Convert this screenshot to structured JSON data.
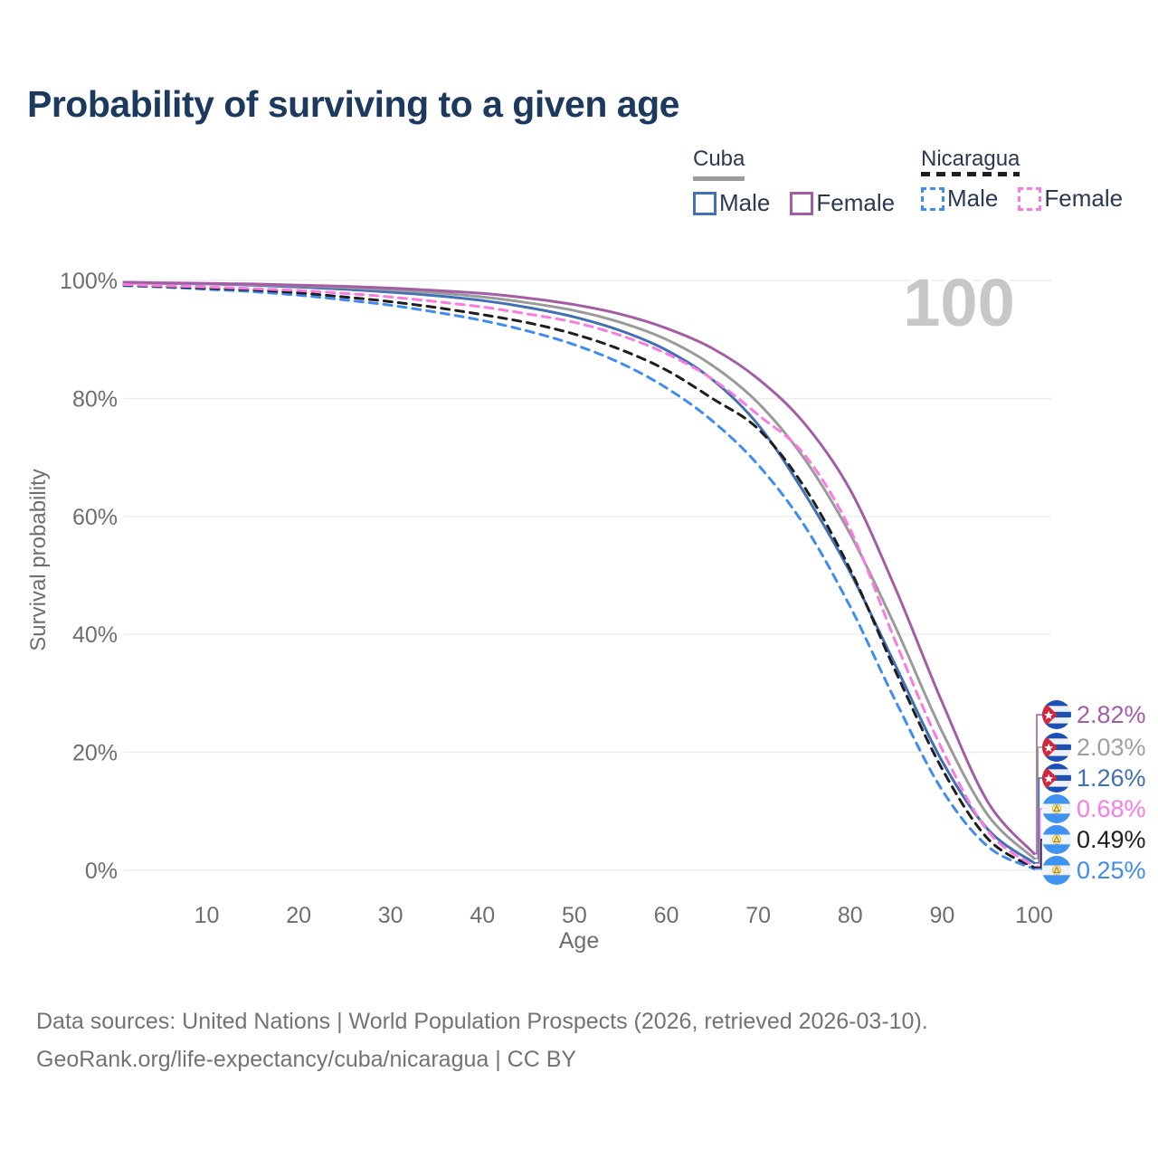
{
  "title": "Probability of surviving to a given age",
  "watermark_age": "100",
  "legend": {
    "groups": [
      {
        "country": "Cuba",
        "underline_style": "solid",
        "underline_color": "#9b9b9b",
        "items": [
          {
            "label": "Male",
            "color": "#4170b4",
            "line_style": "solid"
          },
          {
            "label": "Female",
            "color": "#a45da4",
            "line_style": "solid"
          }
        ]
      },
      {
        "country": "Nicaragua",
        "underline_style": "dashed",
        "underline_color": "#1e1e1e",
        "items": [
          {
            "label": "Male",
            "color": "#3e8cf2",
            "line_style": "dashed"
          },
          {
            "label": "Female",
            "color": "#f97ae1",
            "line_style": "dashed"
          }
        ]
      }
    ]
  },
  "axes": {
    "x_label": "Age",
    "y_label": "Survival probability",
    "x_range": [
      1,
      100
    ],
    "y_range": [
      0,
      100
    ],
    "x_grid": [
      10,
      20,
      30,
      40,
      50,
      60,
      70,
      80,
      90,
      100
    ],
    "x_ticks": [
      "10",
      "20",
      "30",
      "40",
      "50",
      "60",
      "70",
      "80",
      "90",
      "100"
    ],
    "y_grid": [
      0,
      20,
      40,
      60,
      80,
      100
    ],
    "y_ticks": [
      "0%",
      "20%",
      "40%",
      "60%",
      "80%",
      "100%"
    ],
    "grid": true
  },
  "chart_data": {
    "type": "line",
    "title": "Probability of surviving to a given age",
    "xlabel": "Age",
    "ylabel": "Survival probability",
    "xlim": [
      1,
      100
    ],
    "ylim": [
      0,
      100
    ],
    "x": [
      1,
      5,
      10,
      15,
      20,
      25,
      30,
      35,
      40,
      45,
      50,
      55,
      60,
      65,
      70,
      75,
      80,
      85,
      90,
      95,
      100
    ],
    "series": [
      {
        "name": "Cuba Female",
        "country": "cuba",
        "sex": "Female",
        "style": "solid",
        "color": "#a45da4",
        "end_label": "2.82%",
        "values": [
          99.7,
          99.6,
          99.5,
          99.4,
          99.2,
          99.0,
          98.7,
          98.3,
          97.8,
          97.0,
          95.9,
          94.3,
          91.9,
          88.5,
          83.3,
          75.8,
          64.5,
          47.5,
          28.5,
          11.5,
          2.82
        ]
      },
      {
        "name": "Cuba Both sexes",
        "country": "cuba",
        "sex": "Both sexes",
        "style": "solid",
        "color": "#9a9a9a",
        "end_label": "2.03%",
        "values": [
          99.6,
          99.5,
          99.4,
          99.3,
          99.1,
          98.8,
          98.4,
          97.9,
          97.2,
          96.2,
          94.9,
          92.9,
          90.0,
          85.6,
          79.2,
          69.8,
          57.0,
          41.0,
          23.5,
          9.3,
          2.03
        ]
      },
      {
        "name": "Cuba Male",
        "country": "cuba",
        "sex": "Male",
        "style": "solid",
        "color": "#4170b4",
        "end_label": "1.26%",
        "values": [
          99.6,
          99.5,
          99.4,
          99.2,
          98.9,
          98.5,
          98.0,
          97.4,
          96.6,
          95.4,
          93.8,
          91.5,
          88.2,
          83.2,
          75.5,
          64.0,
          50.5,
          34.5,
          18.5,
          6.9,
          1.26
        ]
      },
      {
        "name": "Nicaragua Female",
        "country": "nicaragua",
        "sex": "Female",
        "style": "dashed",
        "color": "#f97ae1",
        "end_label": "0.68%",
        "values": [
          99.3,
          99.1,
          98.9,
          98.6,
          98.3,
          97.8,
          97.2,
          96.4,
          95.5,
          94.3,
          92.9,
          90.7,
          87.6,
          83.3,
          77.2,
          70.5,
          57.8,
          38.5,
          20.5,
          6.6,
          0.68
        ]
      },
      {
        "name": "Nicaragua Both sexes",
        "country": "nicaragua",
        "sex": "Both sexes",
        "style": "dashed",
        "color": "#1e1e1e",
        "end_label": "0.49%",
        "values": [
          99.2,
          99.0,
          98.7,
          98.4,
          97.9,
          97.2,
          96.4,
          95.4,
          94.2,
          92.8,
          90.9,
          88.3,
          84.8,
          80.0,
          74.8,
          65.0,
          51.0,
          33.5,
          17.2,
          5.3,
          0.49
        ]
      },
      {
        "name": "Nicaragua Male",
        "country": "nicaragua",
        "sex": "Male",
        "style": "dashed",
        "color": "#3e8cf2",
        "end_label": "0.25%",
        "values": [
          99.1,
          98.9,
          98.5,
          98.1,
          97.5,
          96.7,
          95.8,
          94.6,
          93.2,
          91.4,
          89.1,
          86.0,
          81.8,
          76.2,
          68.7,
          58.5,
          44.7,
          28.5,
          13.6,
          4.0,
          0.25
        ]
      }
    ],
    "legend_position": "top-right"
  },
  "footer": {
    "line1": "Data sources: United Nations | World Population Prospects (2026, retrieved 2026-03-10).",
    "line2": "GeoRank.org/life-expectancy/cuba/nicaragua | CC BY"
  }
}
